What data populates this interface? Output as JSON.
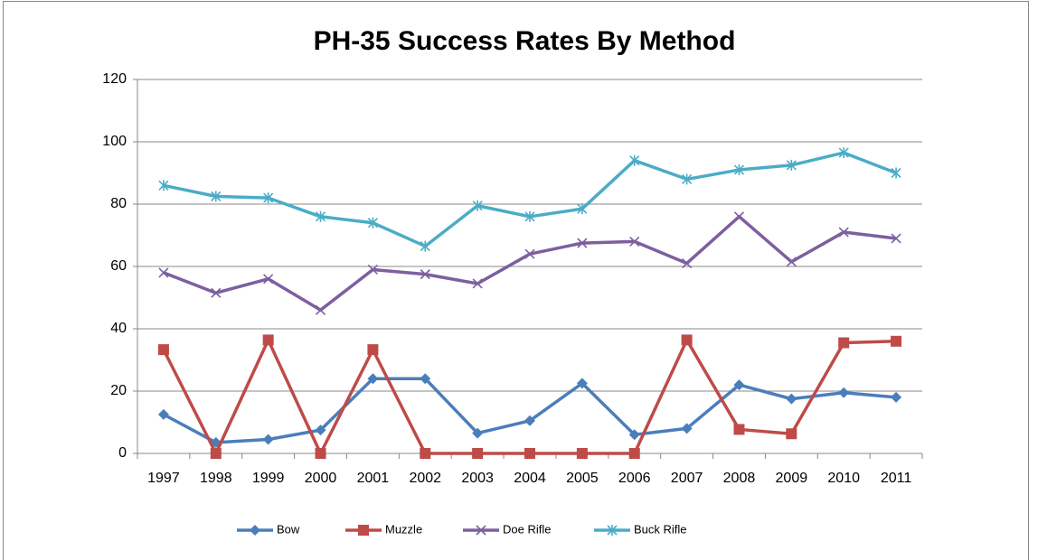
{
  "chart_data": {
    "type": "line",
    "title": "PH-35 Success Rates By Method",
    "categories": [
      "1997",
      "1998",
      "1999",
      "2000",
      "2001",
      "2002",
      "2003",
      "2004",
      "2005",
      "2006",
      "2007",
      "2008",
      "2009",
      "2010",
      "2011"
    ],
    "series": [
      {
        "name": "Bow",
        "color": "#4a7ebb",
        "marker": "diamond",
        "values": [
          12.5,
          3.5,
          4.5,
          7.5,
          24,
          24,
          6.5,
          10.5,
          22.5,
          6,
          8,
          22,
          17.5,
          19.5,
          18
        ]
      },
      {
        "name": "Muzzle",
        "color": "#be4b48",
        "marker": "square",
        "values": [
          33.3,
          0,
          36.4,
          0,
          33.3,
          0,
          0,
          0,
          0,
          0,
          36.4,
          7.7,
          6.3,
          35.5,
          36
        ]
      },
      {
        "name": "Doe Rifle",
        "color": "#7d5fa0",
        "marker": "x",
        "values": [
          58,
          51.5,
          56,
          46,
          59,
          57.5,
          54.5,
          64,
          67.5,
          68,
          61,
          76,
          61.5,
          71,
          69
        ]
      },
      {
        "name": "Buck Rifle",
        "color": "#4bacc6",
        "marker": "star",
        "values": [
          86,
          82.5,
          82,
          76,
          74,
          66.5,
          79.5,
          76,
          78.5,
          94,
          88,
          91,
          92.5,
          96.5,
          90
        ]
      }
    ],
    "ylim": [
      0,
      120
    ],
    "yticks": [
      0,
      20,
      40,
      60,
      80,
      100,
      120
    ],
    "grid": true,
    "legend": "bottom"
  }
}
